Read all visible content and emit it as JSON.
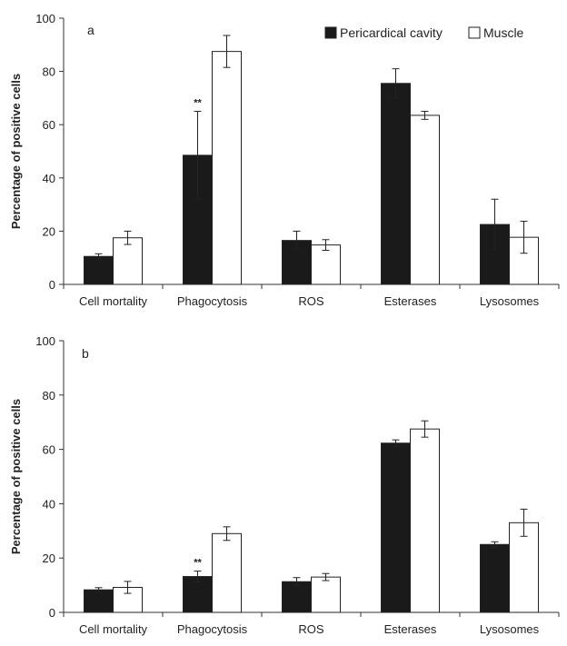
{
  "chart_data": [
    {
      "type": "bar",
      "panel_label": "a",
      "ylabel": "Percentage of positive cells",
      "ylim": [
        0,
        100
      ],
      "yticks": [
        0,
        20,
        40,
        60,
        80,
        100
      ],
      "categories": [
        "Cell mortality",
        "Phagocytosis",
        "ROS",
        "Esterases",
        "Lysosomes"
      ],
      "legend": {
        "position": "top-right",
        "entries": [
          "Pericardical cavity",
          "Muscle"
        ]
      },
      "series": [
        {
          "name": "Pericardical cavity",
          "color": "#1a1a1a",
          "values": [
            10.5,
            48.5,
            16.5,
            75.5,
            22.5
          ],
          "errors": [
            1,
            16.5,
            3.5,
            5.5,
            9.5
          ]
        },
        {
          "name": "Muscle",
          "color": "#ffffff",
          "values": [
            17.5,
            87.5,
            14.8,
            63.5,
            17.7
          ],
          "errors": [
            2.5,
            6,
            2,
            1.5,
            6
          ]
        }
      ],
      "annotations": [
        {
          "category": "Phagocytosis",
          "series": "Pericardical cavity",
          "text": "**"
        }
      ]
    },
    {
      "type": "bar",
      "panel_label": "b",
      "ylabel": "Percentage of positive cells",
      "ylim": [
        0,
        100
      ],
      "yticks": [
        0,
        20,
        40,
        60,
        80,
        100
      ],
      "categories": [
        "Cell mortality",
        "Phagocytosis",
        "ROS",
        "Esterases",
        "Lysosomes"
      ],
      "series": [
        {
          "name": "Pericardical cavity",
          "color": "#1a1a1a",
          "values": [
            8.3,
            13.2,
            11.3,
            62.3,
            25
          ],
          "errors": [
            0.8,
            2,
            1.5,
            1.2,
            1
          ]
        },
        {
          "name": "Muscle",
          "color": "#ffffff",
          "values": [
            9.2,
            29,
            13,
            67.5,
            33
          ],
          "errors": [
            2.2,
            2.5,
            1.3,
            3,
            5
          ]
        }
      ],
      "annotations": [
        {
          "category": "Phagocytosis",
          "series": "Pericardical cavity",
          "text": "**"
        }
      ]
    }
  ]
}
